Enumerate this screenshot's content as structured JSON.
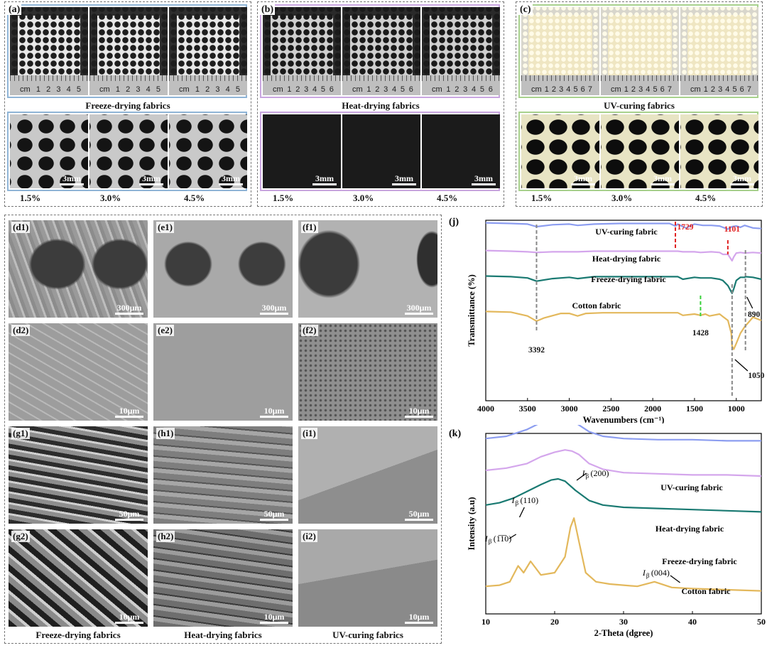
{
  "panels_top": [
    {
      "tag": "(a)",
      "label": "Freeze-drying fabrics",
      "color": "#8fb4d6",
      "ruler_marks": [
        "cm",
        "1",
        "2",
        "3",
        "4",
        "5"
      ],
      "percents": [
        "1.5%",
        "3.0%",
        "4.5%"
      ],
      "scale": "3mm"
    },
    {
      "tag": "(b)",
      "label": "Heat-drying fabrics",
      "color": "#c9a6e0",
      "ruler_marks": [
        "cm",
        "1",
        "2",
        "3",
        "4",
        "5",
        "6"
      ],
      "percents": [
        "1.5%",
        "3.0%",
        "4.5%"
      ],
      "scale": "3mm"
    },
    {
      "tag": "(c)",
      "label": "UV-curing fabrics",
      "color": "#a8d18d",
      "ruler_marks": [
        "cm",
        "1",
        "2",
        "3",
        "4",
        "5",
        "6",
        "7"
      ],
      "percents": [
        "1.5%",
        "3.0%",
        "4.5%"
      ],
      "scale": "3mm"
    }
  ],
  "sem": {
    "rows": [
      [
        {
          "tag": "(d1)",
          "scale": "300μm"
        },
        {
          "tag": "(e1)",
          "scale": "300μm"
        },
        {
          "tag": "(f1)",
          "scale": "300μm"
        }
      ],
      [
        {
          "tag": "(d2)",
          "scale": "10μm"
        },
        {
          "tag": "(e2)",
          "scale": "10μm"
        },
        {
          "tag": "(f2)",
          "scale": "10μm"
        }
      ],
      [
        {
          "tag": "(g1)",
          "scale": "50μm"
        },
        {
          "tag": "(h1)",
          "scale": "50μm"
        },
        {
          "tag": "(i1)",
          "scale": "50μm"
        }
      ],
      [
        {
          "tag": "(g2)",
          "scale": "10μm"
        },
        {
          "tag": "(h2)",
          "scale": "10μm"
        },
        {
          "tag": "(i2)",
          "scale": "10μm"
        }
      ]
    ],
    "column_labels": [
      "Freeze-drying fabrics",
      "Heat-drying fabrics",
      "UV-curing fabrics"
    ]
  },
  "chart_data": [
    {
      "id": "j",
      "tag": "(j)",
      "type": "line",
      "xlabel": "Wavenumbers (cm⁻¹)",
      "ylabel": "Transmittance (%)",
      "xlim": [
        4000,
        700
      ],
      "xticks": [
        4000,
        3500,
        3000,
        2500,
        2000,
        1500,
        1000
      ],
      "series": [
        {
          "name": "UV-curing fabric",
          "color": "#8c9df0",
          "x": [
            4000,
            3700,
            3500,
            3392,
            3200,
            3000,
            2900,
            2700,
            2400,
            2000,
            1800,
            1729,
            1700,
            1640,
            1600,
            1500,
            1400,
            1300,
            1200,
            1101,
            1050,
            1000,
            950,
            900,
            800,
            700
          ],
          "y": [
            96,
            95,
            94,
            90,
            93,
            94,
            92,
            94,
            95,
            95,
            95,
            91,
            94,
            90,
            88,
            94,
            92,
            92,
            91,
            86,
            90,
            91,
            89,
            92,
            88,
            87
          ]
        },
        {
          "name": "Heat-drying fabric",
          "color": "#d4a6ec",
          "x": [
            4000,
            3700,
            3500,
            3392,
            3200,
            3000,
            2900,
            2700,
            2400,
            2000,
            1800,
            1700,
            1640,
            1500,
            1428,
            1300,
            1200,
            1160,
            1100,
            1050,
            1030,
            1000,
            950,
            900,
            800,
            700
          ],
          "y": [
            86,
            85,
            84,
            83,
            84,
            84,
            84,
            85,
            85,
            85,
            85,
            85,
            84,
            84,
            83,
            84,
            83,
            80,
            80,
            70,
            76,
            82,
            83,
            82,
            83,
            82
          ]
        },
        {
          "name": "Freeze-drying fabric",
          "color": "#1a7a72",
          "x": [
            4000,
            3700,
            3500,
            3392,
            3200,
            3000,
            2900,
            2700,
            2400,
            2000,
            1800,
            1700,
            1640,
            1500,
            1428,
            1300,
            1200,
            1160,
            1100,
            1050,
            1030,
            1000,
            950,
            900,
            890,
            800,
            700
          ],
          "y": [
            75,
            74,
            72,
            67,
            71,
            73,
            71,
            74,
            74,
            74,
            74,
            74,
            70,
            73,
            72,
            72,
            70,
            68,
            60,
            48,
            55,
            68,
            73,
            73,
            74,
            73,
            70
          ]
        },
        {
          "name": "Cotton fabric",
          "color": "#e3b85c",
          "x": [
            4000,
            3700,
            3500,
            3392,
            3300,
            3100,
            3000,
            2900,
            2800,
            2600,
            2400,
            2000,
            1800,
            1700,
            1640,
            1500,
            1428,
            1370,
            1320,
            1200,
            1160,
            1100,
            1060,
            1050,
            1030,
            1000,
            950,
            900,
            800,
            700
          ],
          "y": [
            64,
            63,
            57,
            49,
            54,
            61,
            61,
            57,
            61,
            62,
            62,
            62,
            62,
            62,
            58,
            60,
            58,
            60,
            57,
            60,
            56,
            50,
            30,
            10,
            5,
            14,
            30,
            40,
            55,
            50
          ]
        }
      ],
      "annotations": [
        "3392",
        "1729",
        "1101",
        "1428",
        "1050",
        "890"
      ]
    },
    {
      "id": "k",
      "tag": "(k)",
      "type": "line",
      "xlabel": "2-Theta (dgree)",
      "ylabel": "Intensity (a.u)",
      "xlim": [
        10,
        50
      ],
      "xticks": [
        10,
        20,
        30,
        40,
        50
      ],
      "series": [
        {
          "name": "UV-curing fabric",
          "color": "#8c9df0",
          "x": [
            10,
            13,
            16,
            18,
            19.5,
            20.5,
            21.5,
            23,
            25,
            27,
            30,
            35,
            40,
            45,
            50
          ],
          "y": [
            78,
            80,
            86,
            92,
            97,
            99,
            98,
            92,
            84,
            80,
            78,
            77,
            77,
            76,
            76
          ]
        },
        {
          "name": "Heat-drying fabric",
          "color": "#d4a6ec",
          "x": [
            10,
            13,
            16,
            18,
            20,
            21.5,
            22.5,
            23.5,
            25,
            27,
            30,
            35,
            40,
            45,
            50
          ],
          "y": [
            60,
            62,
            66,
            72,
            76,
            78,
            77,
            74,
            66,
            61,
            58,
            57,
            56,
            56,
            55
          ]
        },
        {
          "name": "Freeze-drying fabric",
          "color": "#1a7a72",
          "x": [
            10,
            12,
            14,
            16,
            18,
            19.5,
            20.5,
            21.5,
            23,
            25,
            27,
            30,
            35,
            40,
            45,
            50
          ],
          "y": [
            42,
            44,
            48,
            54,
            60,
            64,
            65,
            63,
            55,
            46,
            42,
            40,
            39,
            38,
            37,
            36
          ]
        },
        {
          "name": "Cotton fabric",
          "color": "#e3b85c",
          "x": [
            10,
            12,
            13.5,
            14.7,
            15.5,
            16.5,
            18,
            20,
            21.5,
            22.3,
            22.8,
            23.5,
            24.5,
            26,
            28,
            30,
            32,
            34.5,
            37,
            40,
            45,
            50
          ],
          "y": [
            18,
            19,
            22,
            36,
            30,
            40,
            28,
            30,
            44,
            70,
            78,
            58,
            30,
            22,
            20,
            19,
            18,
            22,
            17,
            16,
            15,
            14
          ]
        }
      ],
      "annotations": [
        "(200)",
        "(110)",
        "(1̅1̅0)",
        "(004)"
      ]
    }
  ]
}
